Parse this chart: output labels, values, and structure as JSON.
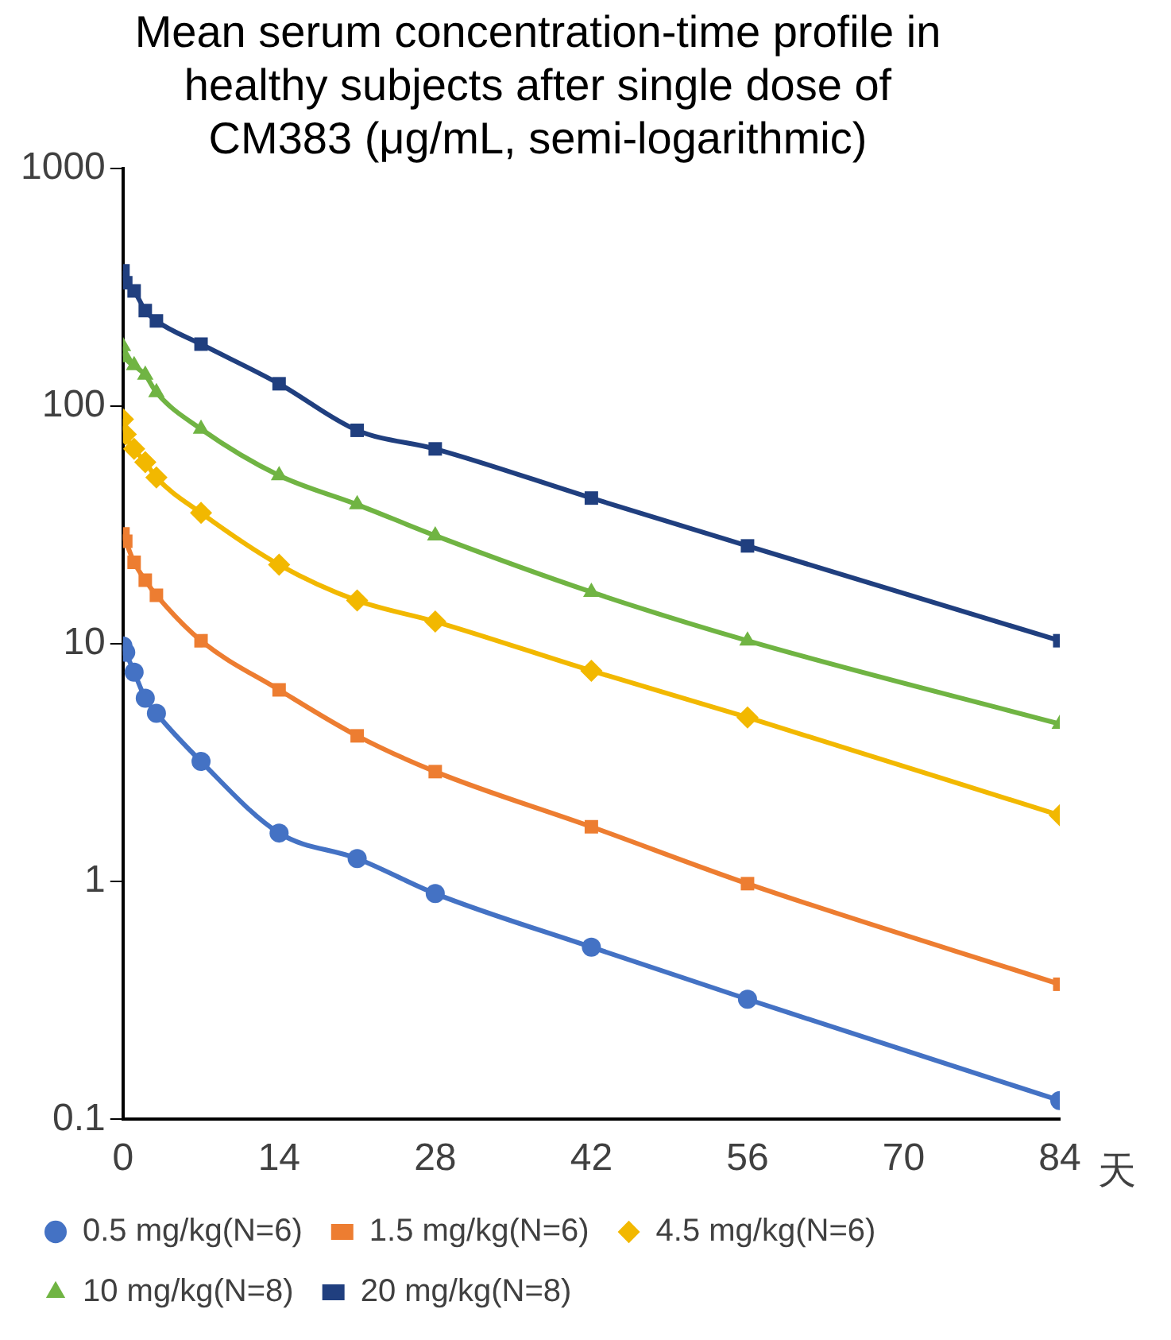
{
  "chart_data": {
    "type": "line",
    "title": "Mean serum concentration-time profile in healthy subjects after single dose of CM383 (μg/mL, semi-logarithmic)",
    "xlabel": "天",
    "x": [
      0,
      0.25,
      1,
      2,
      3,
      7,
      14,
      21,
      28,
      42,
      56,
      84
    ],
    "series": [
      {
        "name": "0.5 mg/kg(N=6)",
        "color": "#4472c4",
        "marker": "circle",
        "values": [
          9.8,
          9.2,
          7.6,
          5.9,
          5.1,
          3.2,
          1.6,
          1.25,
          0.89,
          0.53,
          0.32,
          0.12
        ]
      },
      {
        "name": "1.5 mg/kg(N=6)",
        "color": "#ed7d31",
        "marker": "square",
        "values": [
          29,
          27,
          22,
          18.5,
          16,
          10.3,
          6.4,
          4.1,
          2.9,
          1.7,
          0.98,
          0.37
        ]
      },
      {
        "name": "4.5 mg/kg(N=6)",
        "color": "#f2b800",
        "marker": "diamond",
        "values": [
          88,
          76,
          66,
          58,
          50,
          35.5,
          21.5,
          15.2,
          12.4,
          7.7,
          4.9,
          1.9
        ]
      },
      {
        "name": "10 mg/kg(N=8)",
        "color": "#70b443",
        "marker": "triangle",
        "values": [
          178,
          160,
          148,
          135,
          114,
          80,
          51,
          38.5,
          28.5,
          16.5,
          10.3,
          4.6
        ]
      },
      {
        "name": "20 mg/kg(N=8)",
        "color": "#203f7f",
        "marker": "square",
        "values": [
          370,
          330,
          305,
          252,
          228,
          182,
          124,
          79,
          66,
          41,
          25.8,
          10.3
        ]
      }
    ],
    "xlim": [
      0,
      84
    ],
    "xticks": [
      0,
      14,
      28,
      42,
      56,
      70,
      84
    ],
    "log": "y",
    "ylim": [
      0.1,
      1000
    ],
    "yticks": [
      0.1,
      1,
      10,
      100,
      1000
    ],
    "grid": false,
    "legend": "bottom",
    "line_style": "solid"
  }
}
